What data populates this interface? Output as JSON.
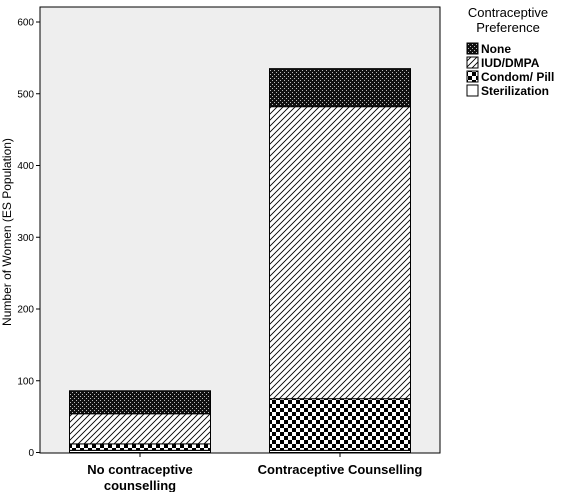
{
  "chart_data": {
    "type": "bar",
    "stacked": true,
    "ylabel": "Number of Women (ES Population)",
    "xlabel": "",
    "ylim": [
      0,
      650
    ],
    "yticks": [
      0,
      100,
      200,
      300,
      400,
      500,
      600
    ],
    "grid": false,
    "legend_placement": "right",
    "legend_title": [
      "Contraceptive",
      "Preference"
    ],
    "categories": [
      [
        "No contraceptive",
        "counselling"
      ],
      [
        "Contraceptive Counselling"
      ]
    ],
    "series": [
      {
        "name": "None",
        "values": [
          32,
          53
        ],
        "pattern": "dots-dark"
      },
      {
        "name": "IUD/DMPA",
        "values": [
          42,
          407
        ],
        "pattern": "diagonal-hatch"
      },
      {
        "name": "Condom/ Pill",
        "values": [
          9,
          72
        ],
        "pattern": "checker"
      },
      {
        "name": "Sterilization",
        "values": [
          3,
          3
        ],
        "pattern": "empty"
      }
    ],
    "plot_background": "#eeeeee"
  }
}
